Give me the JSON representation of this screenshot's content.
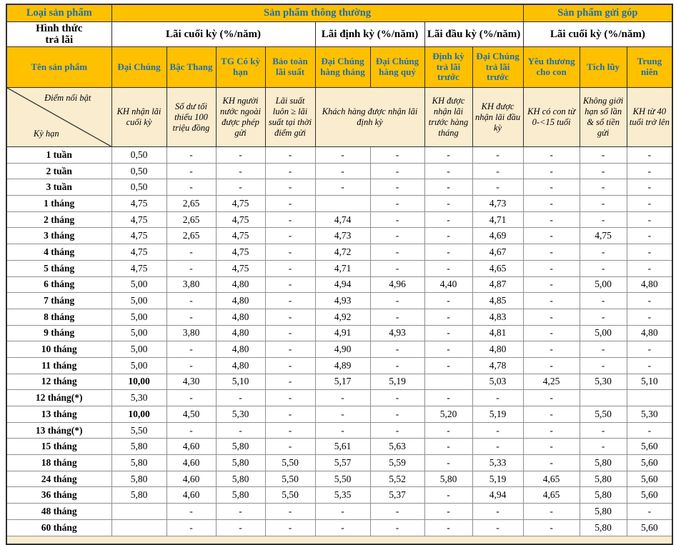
{
  "colors": {
    "header_bg": "#FFC000",
    "header_text": "#1E6FA8",
    "highlight_bg": "#FAECCF"
  },
  "table": {
    "corner": {
      "product_type_label": "Loại sản phẩm",
      "payment_form_label": "Hình thức\ntrả lãi",
      "product_name_label": "Tên sản phẩm",
      "diag_top": "Điểm nổi bật",
      "diag_bottom": "Kỳ hạn"
    },
    "groups_row1": {
      "normal": "Sản phẩm thông thường",
      "installment": "Sản phẩm gửi góp"
    },
    "groups_row2": [
      "Lãi cuối kỳ (%/năm)",
      "Lãi định kỳ (%/năm)",
      "Lãi đầu kỳ (%/năm)",
      "Lãi cuối kỳ (%/năm)"
    ],
    "products": [
      "Đại Chúng",
      "Bậc Thang",
      "TG Có kỳ hạn",
      "Bảo toàn lãi suất",
      "Đại Chúng hàng tháng",
      "Đại Chúng hàng quý",
      "Định kỳ trả lãi trước",
      "Đại Chúng trả lãi trước",
      "Yêu thương cho con",
      "Tích lũy",
      "Trung niên"
    ],
    "highlights": [
      "KH nhận lãi cuối kỳ",
      "Số dư tối thiểu 100 triệu đồng",
      "KH người nước ngoài được phép gửi",
      "Lãi suất luôn ≥ lãi suất tại thời điểm gửi",
      "Khách hàng được nhận lãi định kỳ",
      "KH được nhận lãi trước hàng tháng",
      "KH được nhận lãi đầu kỳ",
      "KH có con từ 0-<15 tuổi",
      "Không giới hạn số lần & số tiền gửi",
      "KH từ 40 tuổi trở lên"
    ],
    "rows": [
      {
        "term": "1 tuần",
        "values": [
          "0,50",
          "-",
          "-",
          "-",
          "-",
          "-",
          "-",
          "-",
          "-",
          "-",
          "-"
        ]
      },
      {
        "term": "2 tuần",
        "values": [
          "0,50",
          "-",
          "-",
          "-",
          "-",
          "-",
          "-",
          "-",
          "-",
          "-",
          "-"
        ]
      },
      {
        "term": "3 tuần",
        "values": [
          "0,50",
          "-",
          "-",
          "-",
          "-",
          "-",
          "-",
          "-",
          "-",
          "-",
          "-"
        ]
      },
      {
        "term": "1 tháng",
        "values": [
          "4,75",
          "2,65",
          "4,75",
          "-",
          "",
          "-",
          "-",
          "4,73",
          "-",
          "-",
          "-"
        ]
      },
      {
        "term": "2 tháng",
        "values": [
          "4,75",
          "2,65",
          "4,75",
          "-",
          "4,74",
          "-",
          "-",
          "4,71",
          "-",
          "-",
          "-"
        ]
      },
      {
        "term": "3 tháng",
        "values": [
          "4,75",
          "2,65",
          "4,75",
          "-",
          "4,73",
          "-",
          "-",
          "4,69",
          "-",
          "4,75",
          "-"
        ]
      },
      {
        "term": "4 tháng",
        "values": [
          "4,75",
          "-",
          "4,75",
          "-",
          "4,72",
          "-",
          "-",
          "4,67",
          "-",
          "-",
          "-"
        ]
      },
      {
        "term": "5 tháng",
        "values": [
          "4,75",
          "-",
          "4,75",
          "-",
          "4,71",
          "-",
          "-",
          "4,65",
          "-",
          "-",
          "-"
        ]
      },
      {
        "term": "6 tháng",
        "values": [
          "5,00",
          "3,80",
          "4,80",
          "-",
          "4,94",
          "4,96",
          "4,40",
          "4,87",
          "-",
          "5,00",
          "4,80"
        ]
      },
      {
        "term": "7 tháng",
        "values": [
          "5,00",
          "-",
          "4,80",
          "-",
          "4,93",
          "-",
          "-",
          "4,85",
          "-",
          "-",
          "-"
        ]
      },
      {
        "term": "8 tháng",
        "values": [
          "5,00",
          "-",
          "4,80",
          "-",
          "4,92",
          "-",
          "-",
          "4,83",
          "-",
          "-",
          "-"
        ]
      },
      {
        "term": "9 tháng",
        "values": [
          "5,00",
          "3,80",
          "4,80",
          "-",
          "4,91",
          "4,93",
          "-",
          "4,81",
          "-",
          "5,00",
          "4,80"
        ]
      },
      {
        "term": "10 tháng",
        "values": [
          "5,00",
          "-",
          "4,80",
          "-",
          "4,90",
          "-",
          "-",
          "4,80",
          "-",
          "-",
          "-"
        ]
      },
      {
        "term": "11 tháng",
        "values": [
          "5,00",
          "-",
          "4,80",
          "-",
          "4,89",
          "-",
          "-",
          "4,78",
          "-",
          "-",
          "-"
        ]
      },
      {
        "term": "12 tháng",
        "bold": [
          0
        ],
        "values": [
          "10,00",
          "4,30",
          "5,10",
          "-",
          "5,17",
          "5,19",
          "",
          "5,03",
          "4,25",
          "5,30",
          "5,10"
        ]
      },
      {
        "term": "12 tháng(*)",
        "values": [
          "5,30",
          "-",
          "-",
          "-",
          "-",
          "-",
          "-",
          "-",
          "-",
          "",
          ""
        ]
      },
      {
        "term": "13 tháng",
        "bold": [
          0
        ],
        "values": [
          "10,00",
          "4,50",
          "5,30",
          "-",
          "-",
          "-",
          "5,20",
          "5,19",
          "-",
          "5,50",
          "5,30"
        ]
      },
      {
        "term": "13 tháng(*)",
        "values": [
          "5,50",
          "-",
          "-",
          "-",
          "-",
          "-",
          "-",
          "-",
          "-",
          "-",
          "-"
        ]
      },
      {
        "term": "15 tháng",
        "values": [
          "5,80",
          "4,60",
          "5,80",
          "-",
          "5,61",
          "5,63",
          "-",
          "-",
          "-",
          "-",
          "5,60"
        ]
      },
      {
        "term": "18 tháng",
        "values": [
          "5,80",
          "4,60",
          "5,80",
          "5,50",
          "5,57",
          "5,59",
          "-",
          "5,33",
          "-",
          "5,80",
          "5,60"
        ]
      },
      {
        "term": "24 tháng",
        "values": [
          "5,80",
          "4,60",
          "5,80",
          "5,50",
          "5,50",
          "5,52",
          "5,80",
          "5,19",
          "4,65",
          "5,80",
          "5,60"
        ]
      },
      {
        "term": "36 tháng",
        "values": [
          "5,80",
          "4,60",
          "5,80",
          "5,50",
          "5,35",
          "5,37",
          "-",
          "4,94",
          "4,65",
          "5,80",
          "5,60"
        ]
      },
      {
        "term": "48 tháng",
        "values": [
          "",
          "-",
          "-",
          "-",
          "-",
          "-",
          "-",
          "-",
          "-",
          "5,80",
          "-"
        ]
      },
      {
        "term": "60 tháng",
        "values": [
          "",
          "-",
          "-",
          "-",
          "-",
          "-",
          "-",
          "-",
          "-",
          "5,80",
          "5,60"
        ]
      }
    ]
  }
}
